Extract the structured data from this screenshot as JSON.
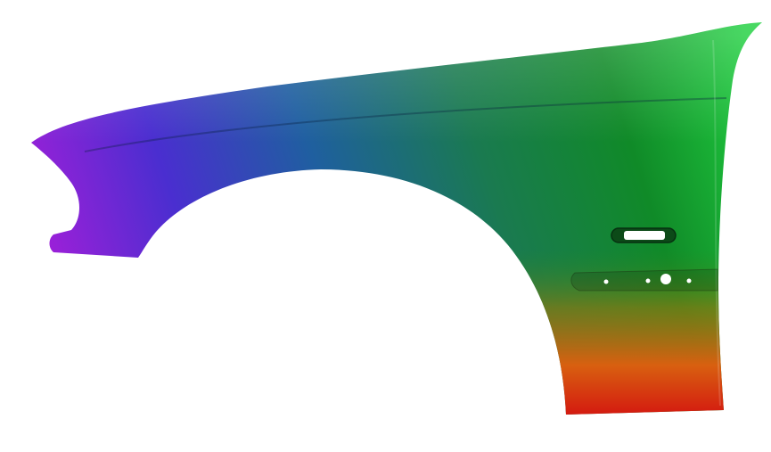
{
  "image": {
    "subject": "car-fender",
    "colors": {
      "background": "#ffffff",
      "purple": "#8a1fd0",
      "blue": "#3a3ad8",
      "teal": "#1f7a8a",
      "green": "#12a030",
      "bright_green": "#22d040",
      "orange": "#e07010",
      "red": "#d02010"
    }
  }
}
